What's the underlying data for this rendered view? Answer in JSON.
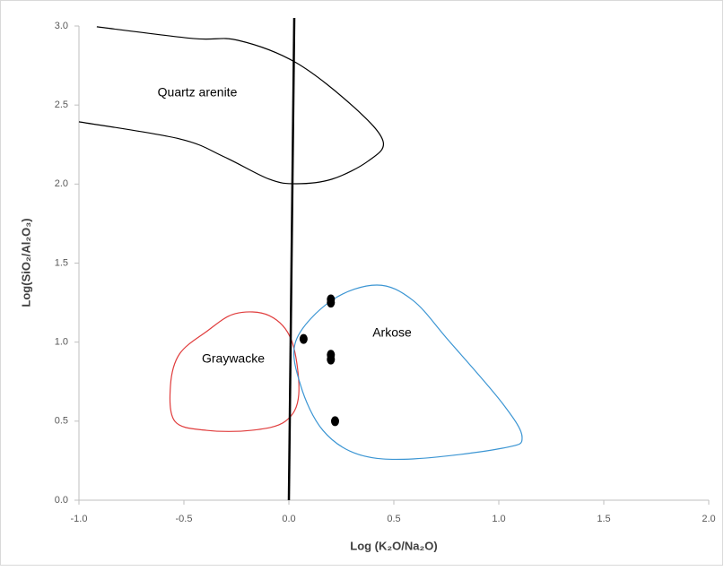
{
  "chart_data": {
    "type": "scatter",
    "x_label": "Log (K₂O/Na₂O)",
    "y_label": "Log(SiO₂/Al₂O₃)",
    "xlim": [
      -1,
      2
    ],
    "ylim": [
      0,
      3
    ],
    "xticks": [
      {
        "value": -1,
        "label": "-1.0"
      },
      -0.5,
      {
        "value": 0,
        "label": "0.0"
      },
      0.5,
      {
        "value": 1,
        "label": "1.0"
      },
      1.5,
      {
        "value": 2,
        "label": "2.0"
      }
    ],
    "yticks": [
      {
        "value": 0,
        "label": "0.0"
      },
      0.5,
      {
        "value": 1,
        "label": "1.0"
      },
      1.5,
      {
        "value": 2,
        "label": "2.0"
      },
      2.5,
      {
        "value": 3,
        "label": "3.0"
      }
    ],
    "grid": false,
    "vline_x": 0,
    "color": "#000000",
    "x": [
      0.2,
      0.2,
      0.07,
      0.2,
      0.2,
      0.22
    ],
    "values": [
      1.27,
      1.25,
      1.02,
      0.92,
      0.89,
      0.5
    ],
    "regions": [
      {
        "name": "Quartz arenite",
        "color": "#000000",
        "closed": false,
        "x": [
          -0.915,
          -0.457,
          -0.244,
          0.034,
          0.312,
          0.449,
          0.376,
          0.205,
          0.034,
          -0.094,
          -0.308,
          -0.521,
          -1.0
        ],
        "y": [
          2.995,
          2.921,
          2.91,
          2.768,
          2.484,
          2.269,
          2.144,
          2.031,
          2.002,
          2.031,
          2.172,
          2.286,
          2.394
        ]
      },
      {
        "name": "Graywacke",
        "color": "#e03c3c",
        "closed": true,
        "x": [
          -0.256,
          -0.094,
          0.013,
          0.047,
          -0.017,
          -0.179,
          -0.393,
          -0.543,
          -0.564,
          -0.521,
          -0.393
        ],
        "y": [
          1.18,
          1.168,
          1.01,
          0.669,
          0.499,
          0.442,
          0.442,
          0.499,
          0.726,
          0.925,
          1.066
        ]
      },
      {
        "name": "Arkose",
        "color": "#3b95d3",
        "closed": true,
        "x": [
          0.034,
          0.205,
          0.419,
          0.59,
          0.761,
          1.017,
          1.111,
          1.017,
          0.59,
          0.333,
          0.162,
          0.056
        ],
        "y": [
          1.01,
          1.265,
          1.361,
          1.265,
          1.01,
          0.613,
          0.397,
          0.329,
          0.261,
          0.289,
          0.442,
          0.726
        ]
      }
    ]
  }
}
